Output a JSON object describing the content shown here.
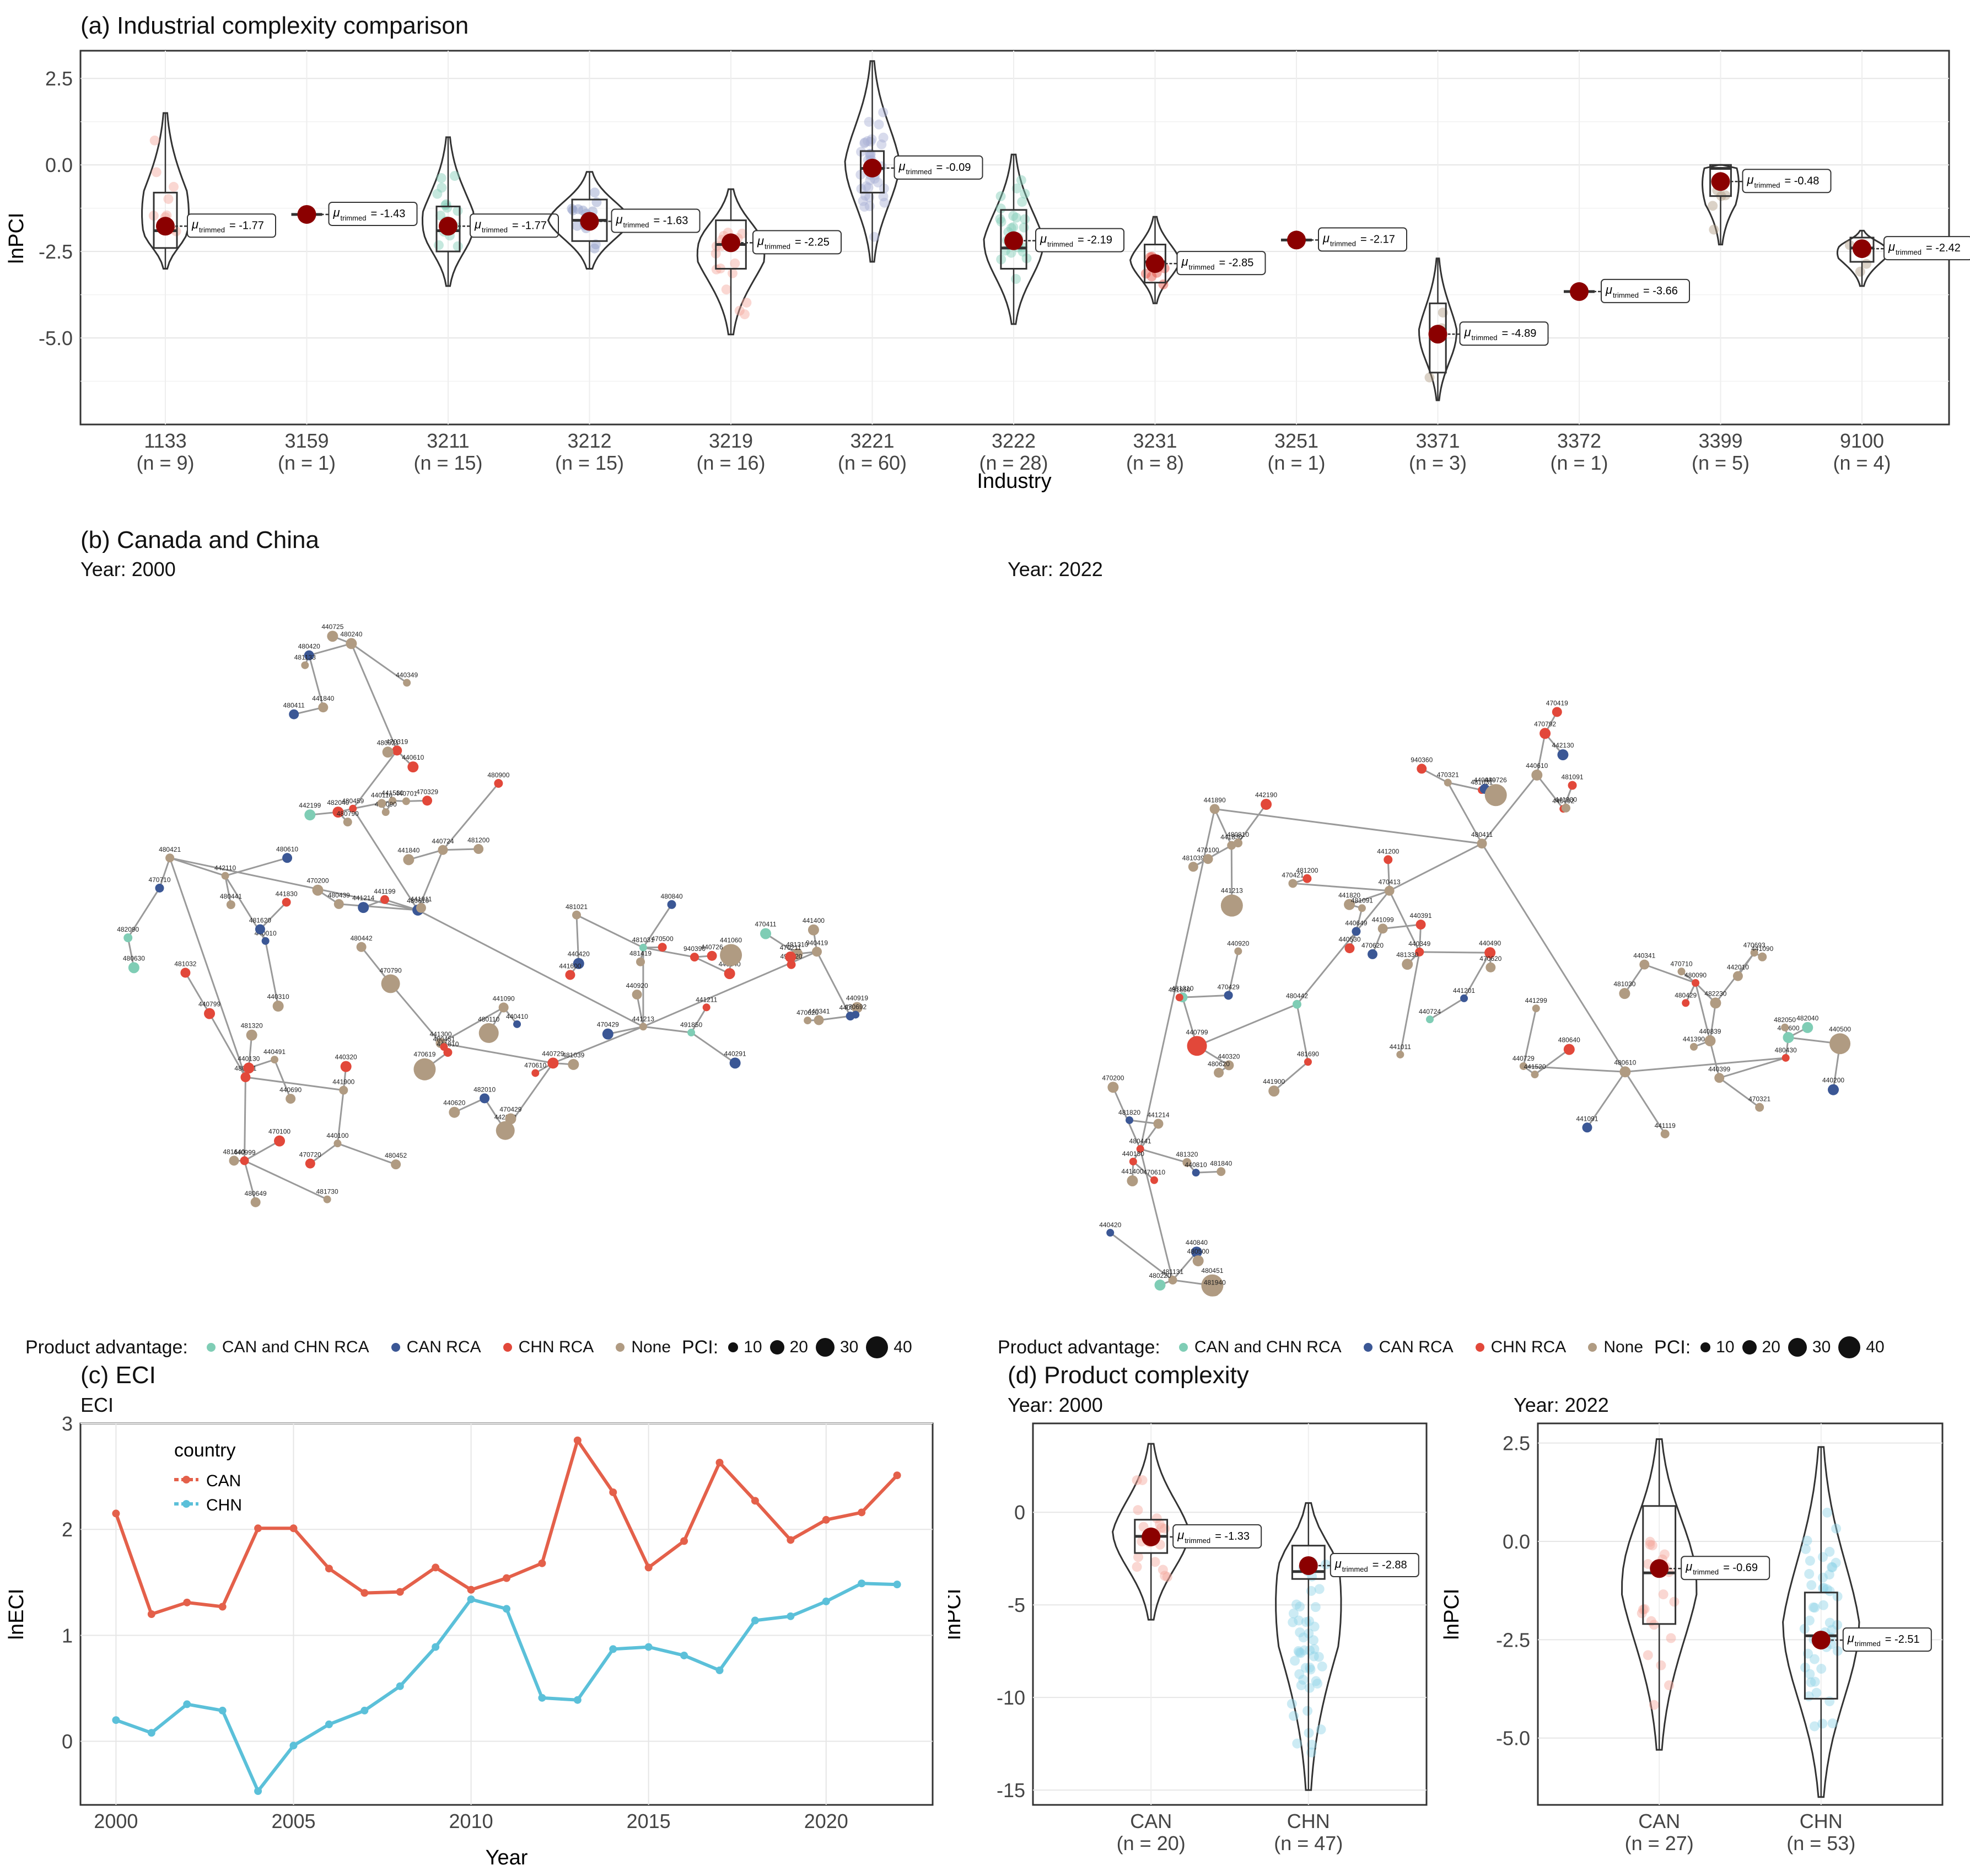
{
  "panel_a": {
    "title": "(a) Industrial complexity comparison",
    "ylabel": "lnPCI",
    "xlabel": "Industry",
    "yticks": [
      "2.5",
      "0.0",
      "-2.5",
      "-5.0"
    ],
    "categories": [
      {
        "code": "1133",
        "n": "(n = 9)",
        "label": "-1.77"
      },
      {
        "code": "3159",
        "n": "(n = 1)",
        "label": "-1.43"
      },
      {
        "code": "3211",
        "n": "(n = 15)",
        "label": "-1.77"
      },
      {
        "code": "3212",
        "n": "(n = 15)",
        "label": "-1.63"
      },
      {
        "code": "3219",
        "n": "(n = 16)",
        "label": "-2.25"
      },
      {
        "code": "3221",
        "n": "(n = 60)",
        "label": "-0.09"
      },
      {
        "code": "3222",
        "n": "(n = 28)",
        "label": "-2.19"
      },
      {
        "code": "3231",
        "n": "(n = 8)",
        "label": "-2.85"
      },
      {
        "code": "3251",
        "n": "(n = 1)",
        "label": "-2.17"
      },
      {
        "code": "3371",
        "n": "(n = 3)",
        "label": "-4.89"
      },
      {
        "code": "3372",
        "n": "(n = 1)",
        "label": "-3.66"
      },
      {
        "code": "3399",
        "n": "(n = 5)",
        "label": "-0.48"
      },
      {
        "code": "9100",
        "n": "(n = 4)",
        "label": "-2.42"
      }
    ]
  },
  "panel_b": {
    "title": "(b) Canada and China",
    "left_year": "Year: 2000",
    "right_year": "Year: 2022",
    "legend_title": "Product advantage:",
    "legend_items": [
      "CAN and CHN RCA",
      "CAN RCA",
      "CHN RCA",
      "None"
    ],
    "legend_colors": [
      "#7fcdb5",
      "#3b5795",
      "#e2483a",
      "#b09b82"
    ],
    "pci_title": "PCI:",
    "pci_sizes": [
      "10",
      "20",
      "30",
      "40"
    ],
    "node_labels_2000": [
      "480421",
      "480610",
      "480459",
      "441213",
      "940419",
      "480431",
      "440729",
      "440799",
      "480439",
      "482040",
      "491850",
      "440831",
      "440999",
      "441300",
      "442110",
      "440724",
      "470319",
      "481031",
      "441400",
      "441900",
      "441090",
      "470710",
      "470790",
      "480240",
      "481021",
      "481310",
      "481730",
      "442010",
      "482090",
      "441199",
      "480420",
      "481419",
      "491420",
      "480649",
      "482010",
      "480630",
      "441840",
      "480921",
      "940390",
      "470411",
      "470100",
      "441810",
      "440010",
      "480900",
      "441840",
      "480840",
      "440840",
      "481640",
      "480451",
      "481620",
      "480442",
      "480411",
      "470429",
      "470211",
      "440100",
      "481039",
      "480610",
      "441214",
      "442199",
      "441211",
      "440919",
      "440130",
      "480110",
      "440310",
      "441011",
      "441530",
      "440920",
      "441060",
      "440491",
      "440620",
      "441830",
      "441090",
      "440110",
      "440420",
      "440291",
      "440320",
      "440410",
      "481320",
      "440701",
      "440610",
      "441600",
      "440341",
      "440690",
      "470619",
      "481032",
      "481200",
      "481133",
      "470500",
      "470620",
      "470720",
      "470610",
      "480441",
      "480790",
      "440349",
      "440726",
      "470692",
      "480452",
      "470429",
      "470200",
      "470329",
      "440725"
    ],
    "node_labels_2022": [
      "480441",
      "441890",
      "480411",
      "470413",
      "480610",
      "480430",
      "481131",
      "480442",
      "470421",
      "470321",
      "440349",
      "440729",
      "440399",
      "440420",
      "440799",
      "441830",
      "440610",
      "441011",
      "441091",
      "441600",
      "440130",
      "440320",
      "480810",
      "440792",
      "440391",
      "441119",
      "440500",
      "480451",
      "480620",
      "442190",
      "940360",
      "441820",
      "441520",
      "482050",
      "481940",
      "481310",
      "441200",
      "481091",
      "441099",
      "480090",
      "482230",
      "481320",
      "481690",
      "470620",
      "481031",
      "481091",
      "440839",
      "480429",
      "440840",
      "470200",
      "481200",
      "470792",
      "440490",
      "440341",
      "470321",
      "440810",
      "441214",
      "441213",
      "440039",
      "441201",
      "470710",
      "470693",
      "480500",
      "470429",
      "481039",
      "441300",
      "440649",
      "441390",
      "440200",
      "470610",
      "481820",
      "470100",
      "440726",
      "440724",
      "481030",
      "442010",
      "441400",
      "441900",
      "440920",
      "442130",
      "481330",
      "441299",
      "441090",
      "480220",
      "481850",
      "440530",
      "470419",
      "470620",
      "480640",
      "482040",
      "481840"
    ]
  },
  "panel_c": {
    "title": "(c) ECI",
    "subtitle": "ECI",
    "ylabel": "lnECI",
    "xlabel": "Year",
    "legend_title": "country",
    "xticks": [
      "2000",
      "2005",
      "2010",
      "2015",
      "2020"
    ],
    "yticks": [
      "3",
      "2",
      "1",
      "0"
    ]
  },
  "panel_d": {
    "title": "(d) Product complexity",
    "left_year": "Year: 2000",
    "right_year": "Year: 2022",
    "ylabel": "lnPCI",
    "left_yticks": [
      "0",
      "-5",
      "-10",
      "-15"
    ],
    "right_yticks": [
      "2.5",
      "0.0",
      "-2.5",
      "-5.0"
    ],
    "left_groups": [
      {
        "code": "CAN",
        "n": "(n = 20)",
        "label": "-1.33"
      },
      {
        "code": "CHN",
        "n": "(n = 47)",
        "label": "-2.88"
      }
    ],
    "right_groups": [
      {
        "code": "CAN",
        "n": "(n = 27)",
        "label": "-0.69"
      },
      {
        "code": "CHN",
        "n": "(n = 53)",
        "label": "-2.51"
      }
    ]
  },
  "chart_data": [
    {
      "type": "box",
      "title": "(a) Industrial complexity comparison",
      "xlabel": "Industry",
      "ylabel": "lnPCI",
      "ylim": [
        -7.5,
        3.3
      ],
      "categories": [
        "1133",
        "3159",
        "3211",
        "3212",
        "3219",
        "3221",
        "3222",
        "3231",
        "3251",
        "3371",
        "3372",
        "3399",
        "9100"
      ],
      "trimmed_means": [
        -1.77,
        -1.43,
        -1.77,
        -1.63,
        -2.25,
        -0.09,
        -2.19,
        -2.85,
        -2.17,
        -4.89,
        -3.66,
        -0.48,
        -2.42
      ],
      "violin_min": [
        -3.0,
        -1.43,
        -3.5,
        -3.0,
        -4.9,
        -2.8,
        -4.6,
        -4.0,
        -2.17,
        -6.8,
        -3.66,
        -2.3,
        -3.5
      ],
      "violin_max": [
        1.5,
        -1.43,
        0.8,
        -0.2,
        -0.7,
        3.0,
        0.3,
        -1.5,
        -2.17,
        -2.7,
        -3.66,
        0.0,
        -1.9
      ],
      "q1": [
        -2.4,
        -1.43,
        -2.5,
        -2.2,
        -3.0,
        -0.8,
        -3.0,
        -3.4,
        -2.17,
        -6.0,
        -3.66,
        -0.9,
        -2.8
      ],
      "median": [
        -1.9,
        -1.43,
        -1.9,
        -1.6,
        -2.3,
        -0.1,
        -2.4,
        -2.8,
        -2.17,
        -5.0,
        -3.66,
        -0.1,
        -2.4
      ],
      "q3": [
        -0.8,
        -1.43,
        -1.2,
        -1.0,
        -1.6,
        0.4,
        -1.3,
        -2.3,
        -2.17,
        -4.0,
        -3.66,
        0.0,
        -2.1
      ],
      "xtick_labels": [
        "1133",
        "3159",
        "3211",
        "3212",
        "3219",
        "3221",
        "3222",
        "3231",
        "3251",
        "3371",
        "3372",
        "3399",
        "9100"
      ],
      "ytick_labels": [
        "2.5",
        "0.0",
        "-2.5",
        "-5.0"
      ]
    },
    {
      "type": "line",
      "title": "(c) ECI",
      "xlabel": "Year",
      "ylabel": "lnECI",
      "xlim": [
        1999,
        2023
      ],
      "ylim": [
        -0.6,
        3.0
      ],
      "x": [
        2000,
        2001,
        2002,
        2003,
        2004,
        2005,
        2006,
        2007,
        2008,
        2009,
        2010,
        2011,
        2012,
        2013,
        2014,
        2015,
        2016,
        2017,
        2018,
        2019,
        2020,
        2021,
        2022
      ],
      "series": [
        {
          "name": "CAN",
          "color": "#e4604a",
          "values": [
            2.15,
            1.2,
            1.31,
            1.27,
            2.01,
            2.01,
            1.63,
            1.4,
            1.41,
            1.64,
            1.43,
            1.54,
            1.68,
            2.84,
            2.35,
            1.64,
            1.89,
            2.63,
            2.27,
            1.9,
            2.09,
            2.16,
            2.51
          ]
        },
        {
          "name": "CHN",
          "color": "#5bc0d9",
          "values": [
            0.2,
            0.08,
            0.35,
            0.29,
            -0.47,
            -0.04,
            0.16,
            0.29,
            0.52,
            0.89,
            1.34,
            1.25,
            0.41,
            0.39,
            0.87,
            0.89,
            0.81,
            0.67,
            1.14,
            1.18,
            1.32,
            1.49,
            1.48
          ]
        }
      ],
      "legend": "top-left"
    },
    {
      "type": "box",
      "title": "Year: 2000",
      "ylabel": "lnPCI",
      "ylim": [
        -15.8,
        4.8
      ],
      "categories": [
        "CAN",
        "CHN"
      ],
      "trimmed_means": [
        -1.33,
        -2.88
      ],
      "violin_min": [
        -5.8,
        -15.0
      ],
      "violin_max": [
        3.7,
        0.5
      ],
      "q1": [
        -2.2,
        -3.6
      ],
      "median": [
        -1.3,
        -3.2
      ],
      "q3": [
        -0.4,
        -1.8
      ]
    },
    {
      "type": "box",
      "title": "Year: 2022",
      "ylabel": "lnPCI",
      "ylim": [
        -6.7,
        3.0
      ],
      "categories": [
        "CAN",
        "CHN"
      ],
      "trimmed_means": [
        -0.69,
        -2.51
      ],
      "violin_min": [
        -5.3,
        -6.5
      ],
      "violin_max": [
        2.6,
        2.4
      ],
      "q1": [
        -2.1,
        -4.0
      ],
      "median": [
        -0.8,
        -2.4
      ],
      "q3": [
        0.9,
        -1.3
      ]
    }
  ]
}
